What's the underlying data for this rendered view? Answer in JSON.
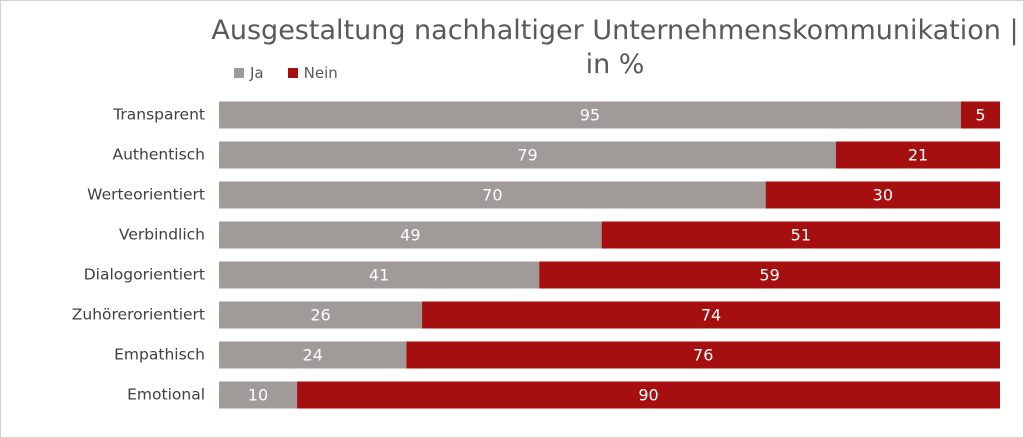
{
  "chart_data": {
    "type": "bar",
    "orientation": "horizontal",
    "stacked": true,
    "title": "Ausgestaltung nachhaltiger Unternehmenskommunikation | in %",
    "categories": [
      "Transparent",
      "Authentisch",
      "Werteorientiert",
      "Verbindlich",
      "Dialogorientiert",
      "Zuhörerorientiert",
      "Empathisch",
      "Emotional"
    ],
    "series": [
      {
        "name": "Ja",
        "color": "#a09b98",
        "values": [
          95,
          79,
          70,
          49,
          41,
          26,
          24,
          10
        ]
      },
      {
        "name": "Nein",
        "color": "#a50f0f",
        "values": [
          5,
          21,
          30,
          51,
          59,
          74,
          76,
          90
        ]
      }
    ],
    "xlim": [
      0,
      100
    ],
    "grid": false,
    "legend_position": "top-left"
  }
}
